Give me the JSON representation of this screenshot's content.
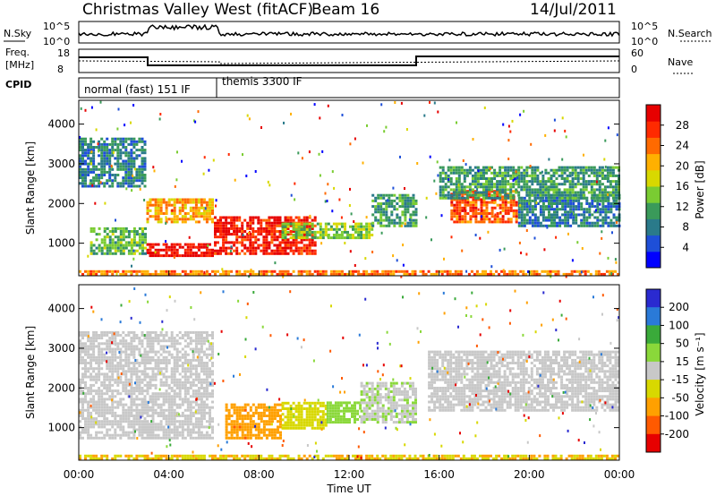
{
  "header": {
    "station": "Christmas Valley West (fitACF)",
    "beam": "Beam 16",
    "date": "14/Jul/2011"
  },
  "panels": {
    "nsky": {
      "label": "N.Sky",
      "right_label": "N.Search",
      "ytick_top": "10^5",
      "ytick_bottom": "10^0"
    },
    "freq": {
      "label_line1": "Freq.",
      "label_line2": "[MHz]",
      "ytick_top": "18",
      "ytick_bottom": "8",
      "right_label": "Nave",
      "rtick_top": "60",
      "rtick_bottom": "0"
    },
    "cpid": {
      "label": "CPID",
      "mode1": "normal (fast) 151 IF",
      "mode2": "themis 3300 IF"
    }
  },
  "colors": {
    "power": [
      "#0000ff",
      "#1e4fd8",
      "#2a7a8a",
      "#3a9a5a",
      "#7acc32",
      "#d8d800",
      "#ffb000",
      "#ff6a00",
      "#ff2a00",
      "#e60000"
    ],
    "velocity": [
      "#2a2ad0",
      "#2a7ad8",
      "#3aaa3a",
      "#8ad83a",
      "#c8c8c8",
      "#d8d800",
      "#ffa000",
      "#ff5a00",
      "#e60000"
    ],
    "velocity_gray": "#c8c8c8"
  },
  "chart_data": [
    {
      "type": "heatmap",
      "name": "Power",
      "ylabel": "Slant Range [km]",
      "xlabel": "Time UT",
      "x_ticks": [
        "00:00",
        "04:00",
        "08:00",
        "12:00",
        "16:00",
        "20:00",
        "00:00"
      ],
      "x_range_hours": [
        0,
        24
      ],
      "y_ticks": [
        "1000",
        "2000",
        "3000",
        "4000"
      ],
      "y_range_km": [
        180,
        4600
      ],
      "colorbar": {
        "label": "Power [dB]",
        "ticks": [
          "4",
          "8",
          "12",
          "16",
          "20",
          "24",
          "28"
        ],
        "range": [
          0,
          30
        ]
      },
      "regions": [
        {
          "t0": 0.0,
          "t1": 3.0,
          "r0": 2400,
          "r1": 3600,
          "value": 8
        },
        {
          "t0": 3.0,
          "t1": 6.0,
          "r0": 1500,
          "r1": 2100,
          "value": 20
        },
        {
          "t0": 3.0,
          "t1": 6.0,
          "r0": 650,
          "r1": 1000,
          "value": 28
        },
        {
          "t0": 0.5,
          "t1": 3.0,
          "r0": 700,
          "r1": 1400,
          "value": 12
        },
        {
          "t0": 6.0,
          "t1": 10.5,
          "r0": 700,
          "r1": 1650,
          "value": 27
        },
        {
          "t0": 9.0,
          "t1": 13.0,
          "r0": 1100,
          "r1": 1500,
          "value": 14
        },
        {
          "t0": 13.0,
          "t1": 15.0,
          "r0": 1400,
          "r1": 2200,
          "value": 10
        },
        {
          "t0": 16.5,
          "t1": 19.5,
          "r0": 1500,
          "r1": 2300,
          "value": 24
        },
        {
          "t0": 19.5,
          "t1": 24.0,
          "r0": 1400,
          "r1": 2200,
          "value": 8
        },
        {
          "t0": 16.0,
          "t1": 24.0,
          "r0": 2100,
          "r1": 2900,
          "value": 10
        },
        {
          "t0": 0.0,
          "t1": 24.0,
          "r0": 180,
          "r1": 300,
          "value": 22
        }
      ]
    },
    {
      "type": "heatmap",
      "name": "Velocity",
      "ylabel": "Slant Range [km]",
      "xlabel": "Time UT",
      "x_ticks": [
        "00:00",
        "04:00",
        "08:00",
        "12:00",
        "16:00",
        "20:00",
        "00:00"
      ],
      "x_range_hours": [
        0,
        24
      ],
      "y_ticks": [
        "1000",
        "2000",
        "3000",
        "4000"
      ],
      "y_range_km": [
        180,
        4600
      ],
      "colorbar": {
        "label": "Velocity [m s⁻¹]",
        "ticks": [
          "200",
          "100",
          "50",
          "15",
          "-15",
          "-50",
          "-100",
          "-200"
        ],
        "range": [
          -250,
          250
        ]
      },
      "regions": [
        {
          "t0": 0.0,
          "t1": 6.0,
          "r0": 700,
          "r1": 3400,
          "value": 0
        },
        {
          "t0": 6.5,
          "t1": 9.0,
          "r0": 700,
          "r1": 1600,
          "value": -120
        },
        {
          "t0": 9.0,
          "t1": 11.0,
          "r0": 950,
          "r1": 1600,
          "value": -60
        },
        {
          "t0": 11.0,
          "t1": 12.5,
          "r0": 1100,
          "r1": 1600,
          "value": 60
        },
        {
          "t0": 12.5,
          "t1": 15.0,
          "r0": 1100,
          "r1": 2100,
          "value": 20
        },
        {
          "t0": 15.5,
          "t1": 24.0,
          "r0": 1400,
          "r1": 2900,
          "value": 0
        },
        {
          "t0": 0.0,
          "t1": 24.0,
          "r0": 180,
          "r1": 320,
          "value": -80
        }
      ]
    }
  ]
}
